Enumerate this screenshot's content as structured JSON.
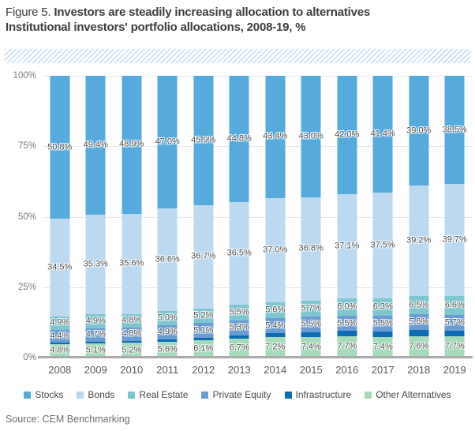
{
  "title": {
    "prefix": "Figure 5. ",
    "main": "Investors are steadily increasing allocation to alternatives",
    "subtitle": "Institutional investors' portfolio allocations, 2008-19, %"
  },
  "source": "Source: CEM Benchmarking",
  "chart_data": {
    "type": "bar",
    "stacked": true,
    "categories": [
      "2008",
      "2009",
      "2010",
      "2011",
      "2012",
      "2013",
      "2014",
      "2015",
      "2016",
      "2017",
      "2018",
      "2019"
    ],
    "series": [
      {
        "name": "Stocks",
        "color": "#56abdc",
        "labeled": true,
        "values": [
          50.8,
          49.4,
          48.9,
          47.0,
          45.9,
          44.8,
          43.4,
          43.0,
          42.0,
          41.4,
          39.0,
          38.5
        ]
      },
      {
        "name": "Bonds",
        "color": "#bcd9f0",
        "labeled": true,
        "values": [
          34.5,
          35.3,
          35.6,
          36.6,
          36.7,
          36.5,
          37.0,
          36.8,
          37.1,
          37.5,
          39.2,
          39.7
        ]
      },
      {
        "name": "Real Estate",
        "color": "#7fc6cf",
        "labeled": true,
        "values": [
          4.9,
          4.9,
          4.8,
          5.0,
          5.2,
          5.5,
          5.6,
          5.7,
          6.0,
          6.3,
          6.5,
          6.6
        ]
      },
      {
        "name": "Private Equity",
        "color": "#6b9cd3",
        "labeled": true,
        "values": [
          4.4,
          4.7,
          4.8,
          4.9,
          5.1,
          5.3,
          5.4,
          5.5,
          5.5,
          5.5,
          5.6,
          5.7
        ]
      },
      {
        "name": "Infrastructure",
        "color": "#0e6cb5",
        "labeled": false,
        "values": [
          0.6,
          0.6,
          0.7,
          0.9,
          1.0,
          1.2,
          1.4,
          1.6,
          1.7,
          1.9,
          2.1,
          1.8
        ]
      },
      {
        "name": "Other Alternatives",
        "color": "#a5dabb",
        "labeled": true,
        "values": [
          4.8,
          5.1,
          5.2,
          5.6,
          6.1,
          6.7,
          7.2,
          7.4,
          7.7,
          7.4,
          7.6,
          7.7
        ]
      }
    ],
    "stack_order_bottom_to_top": [
      "Other Alternatives",
      "Infrastructure",
      "Private Equity",
      "Real Estate",
      "Bonds",
      "Stocks"
    ],
    "ylim": [
      0,
      100
    ],
    "y_ticks": [
      0,
      25,
      50,
      75,
      100
    ],
    "grid": true,
    "legend_position": "bottom"
  }
}
